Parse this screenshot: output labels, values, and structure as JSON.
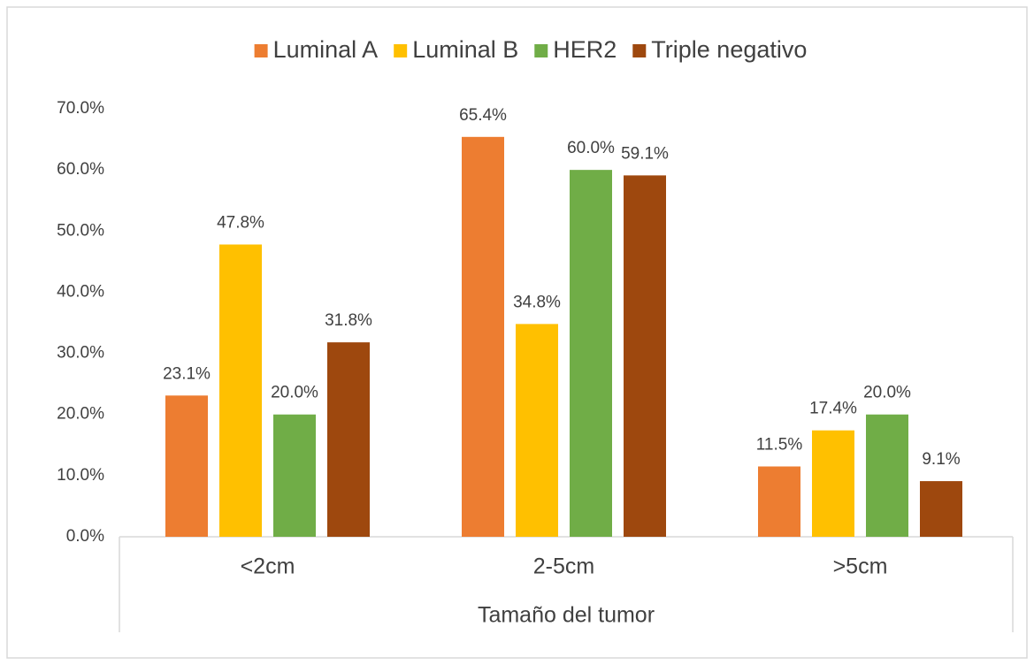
{
  "chart_data": {
    "type": "bar",
    "categories": [
      "<2cm",
      "2-5cm",
      ">5cm"
    ],
    "x_label": "Tamaño del tumor",
    "series": [
      {
        "name": "Luminal A",
        "color": "#ED7D31",
        "values": [
          23.1,
          65.4,
          11.5
        ],
        "value_labels": [
          "23.1%",
          "65.4%",
          "11.5%"
        ]
      },
      {
        "name": "Luminal B",
        "color": "#FFC000",
        "values": [
          47.8,
          34.8,
          17.4
        ],
        "value_labels": [
          "47.8%",
          "34.8%",
          "17.4%"
        ]
      },
      {
        "name": "HER2",
        "color": "#70AD47",
        "values": [
          20.0,
          60.0,
          20.0
        ],
        "value_labels": [
          "20.0%",
          "60.0%",
          "20.0%"
        ]
      },
      {
        "name": "Triple negativo",
        "color": "#9E480E",
        "values": [
          31.8,
          59.1,
          9.1
        ],
        "value_labels": [
          "31.8%",
          "59.1%",
          "9.1%"
        ]
      }
    ],
    "ylim": [
      0,
      70
    ],
    "yticks": [
      {
        "value": 0,
        "label": "0.0%"
      },
      {
        "value": 10,
        "label": "10.0%"
      },
      {
        "value": 20,
        "label": "20.0%"
      },
      {
        "value": 30,
        "label": "30.0%"
      },
      {
        "value": 40,
        "label": "40.0%"
      },
      {
        "value": 50,
        "label": "50.0%"
      },
      {
        "value": 60,
        "label": "60.0%"
      },
      {
        "value": 70,
        "label": "70.0%"
      }
    ],
    "legend": "top"
  }
}
